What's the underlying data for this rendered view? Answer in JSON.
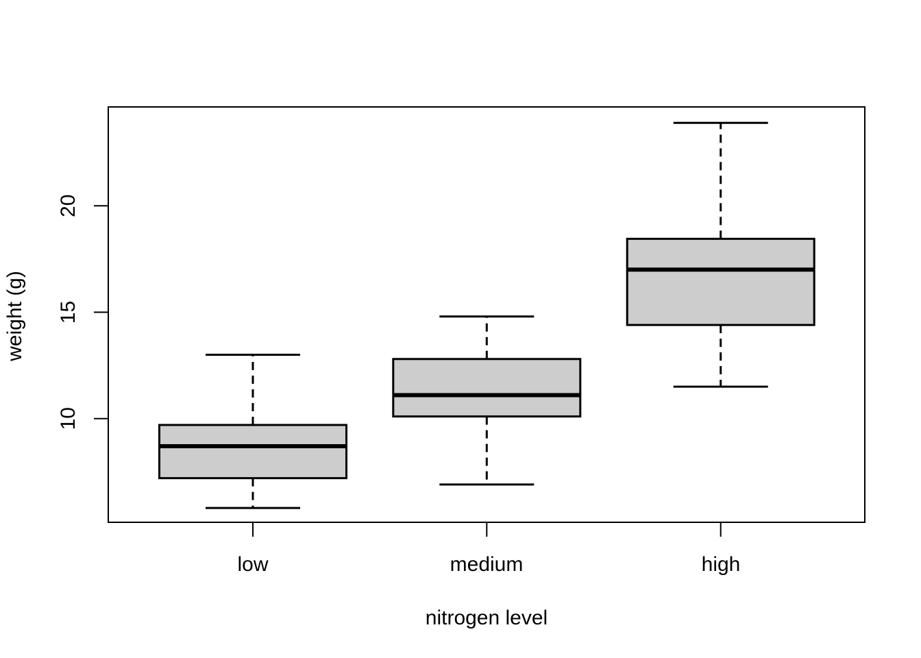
{
  "chart_data": {
    "type": "boxplot",
    "title": "",
    "xlabel": "nitrogen level",
    "ylabel": "weight (g)",
    "categories": [
      "low",
      "medium",
      "high"
    ],
    "y_ticks": [
      10,
      15,
      20
    ],
    "y_tick_labels": [
      "10",
      "15",
      "20"
    ],
    "ylim": [
      5.1,
      24.65
    ],
    "series": [
      {
        "name": "low",
        "min": 5.8,
        "q1": 7.2,
        "median": 8.7,
        "q3": 9.7,
        "max": 13.0
      },
      {
        "name": "medium",
        "min": 6.9,
        "q1": 10.1,
        "median": 11.1,
        "q3": 12.8,
        "max": 14.8
      },
      {
        "name": "high",
        "min": 11.5,
        "q1": 14.4,
        "median": 17.0,
        "q3": 18.45,
        "max": 23.9
      }
    ],
    "legend": null,
    "grid": "off",
    "whisker_style": "dashed",
    "colors": {
      "box_fill": "#cdcdcd",
      "line": "#000000",
      "background": "#ffffff"
    }
  }
}
